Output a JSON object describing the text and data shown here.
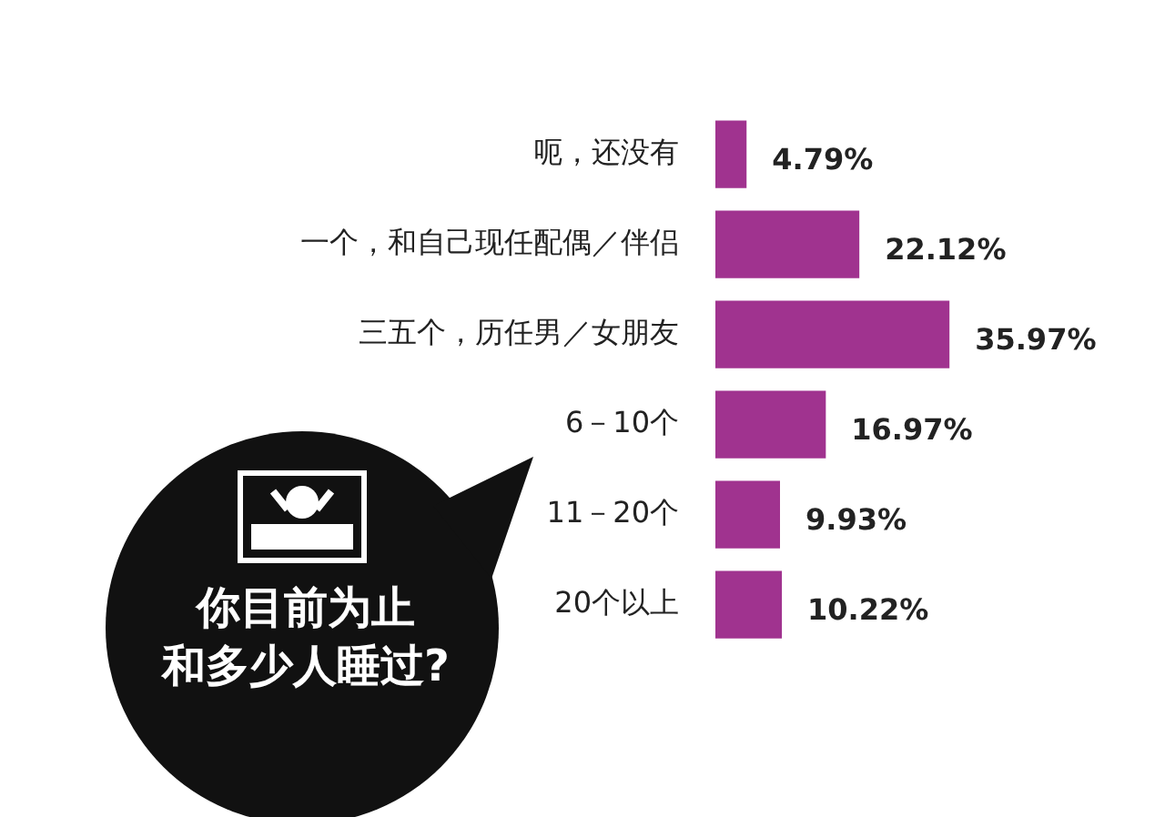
{
  "chart_data": {
    "type": "bar",
    "orientation": "horizontal",
    "title": "你目前为止和多少人睡过?",
    "categories": [
      "呃，还没有",
      "一个，和自己现任配偶／伴侣",
      "三五个，历任男／女朋友",
      "6－10个",
      "11－20个",
      "20个以上"
    ],
    "values": [
      4.79,
      22.12,
      35.97,
      16.97,
      9.93,
      10.22
    ],
    "value_labels": [
      "4.79%",
      "22.12%",
      "35.97%",
      "16.97%",
      "9.93%",
      "10.22%"
    ],
    "color": "#a0338f",
    "grid": false,
    "legend": false
  }
}
